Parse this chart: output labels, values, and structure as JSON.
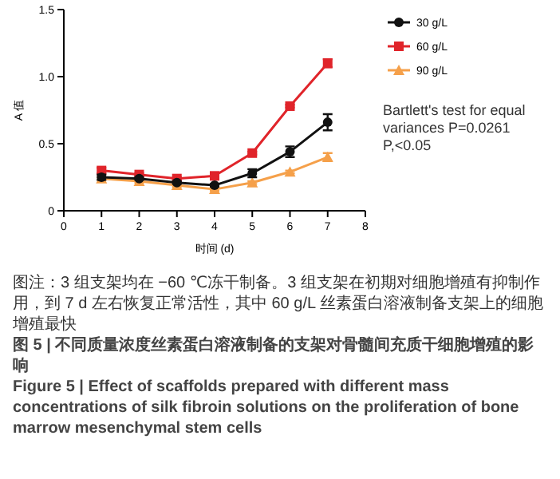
{
  "chart_data": {
    "type": "line",
    "xlabel": "时间 (d)",
    "ylabel": "A 值",
    "x": [
      1,
      2,
      3,
      4,
      5,
      6,
      7
    ],
    "series": [
      {
        "name": "30 g/L",
        "color": "#111111",
        "marker": "circle",
        "values": [
          0.25,
          0.24,
          0.21,
          0.19,
          0.28,
          0.44,
          0.66
        ],
        "errors": [
          0.02,
          0.01,
          0.01,
          0.01,
          0.03,
          0.04,
          0.06
        ]
      },
      {
        "name": "60 g/L",
        "color": "#e0242a",
        "marker": "square",
        "values": [
          0.3,
          0.27,
          0.24,
          0.26,
          0.43,
          0.78,
          1.1
        ],
        "errors": [
          0.02,
          0.01,
          0.01,
          0.01,
          0.01,
          0.01,
          0.03
        ]
      },
      {
        "name": "90 g/L",
        "color": "#f5a04a",
        "marker": "triangle",
        "values": [
          0.24,
          0.22,
          0.19,
          0.16,
          0.21,
          0.29,
          0.4
        ],
        "errors": [
          0.01,
          0.01,
          0.01,
          0.01,
          0.01,
          0.01,
          0.03
        ]
      }
    ],
    "xlim": [
      0,
      8
    ],
    "xticks": [
      0,
      1,
      2,
      3,
      4,
      5,
      6,
      7,
      8
    ],
    "ylim": [
      0,
      1.5
    ],
    "yticks": [
      0,
      {
        "value": 0.5,
        "label": "0.5"
      },
      {
        "value": 1,
        "label": "1.0"
      },
      {
        "value": 1.5,
        "label": "1.5"
      }
    ],
    "grid": false,
    "legend": "right",
    "annotations": [
      "Bartlett's test for equal variances P=0.0261",
      "P,<0.05",
      "图注：3 组支架均在 −60 ℃冻干制备。3 组支架在初期对细胞增殖有抑制作用，到 7 d 左右恢复正常活性，其中 60 g/L 丝素蛋白溶液制备支架上的细胞增殖最快",
      "图 5 | 不同质量浓度丝素蛋白溶液制备的支架对骨髓间充质干细胞增殖的影响",
      "Figure 5 | Effect of scaffolds prepared with different mass concentrations of silk fibroin solutions on the proliferation of bone marrow mesenchymal stem cells"
    ]
  }
}
